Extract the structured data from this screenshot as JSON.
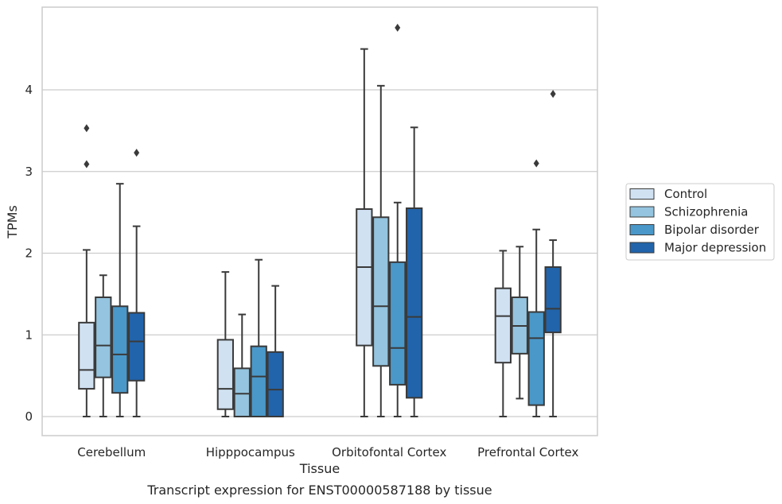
{
  "caption": "Transcript expression for ENST00000587188 by tissue",
  "chart_data": {
    "type": "box",
    "xlabel": "Tissue",
    "ylabel": "TPMs",
    "ylim": [
      -0.23,
      4.97
    ],
    "yticks": [
      0,
      1,
      2,
      3,
      4
    ],
    "grid": "horizontal",
    "legend_position": "right",
    "categories": [
      "Cerebellum",
      "Hipppocampus",
      "Orbitofontal Cortex",
      "Prefrontal Cortex"
    ],
    "series": [
      {
        "name": "Control",
        "color": "#d0e1f2",
        "boxes": [
          {
            "min": 0,
            "q1": 0.34,
            "median": 0.57,
            "q3": 1.15,
            "max": 2.04,
            "outliers": [
              3.09,
              3.53
            ]
          },
          {
            "min": 0,
            "q1": 0.09,
            "median": 0.34,
            "q3": 0.94,
            "max": 1.77,
            "outliers": []
          },
          {
            "min": 0,
            "q1": 0.87,
            "median": 1.83,
            "q3": 2.54,
            "max": 4.5,
            "outliers": []
          },
          {
            "min": 0,
            "q1": 0.66,
            "median": 1.23,
            "q3": 1.57,
            "max": 2.03,
            "outliers": []
          }
        ]
      },
      {
        "name": "Schizophrenia",
        "color": "#94c4df",
        "boxes": [
          {
            "min": 0,
            "q1": 0.48,
            "median": 0.87,
            "q3": 1.46,
            "max": 1.73,
            "outliers": []
          },
          {
            "min": 0,
            "q1": 0,
            "median": 0.28,
            "q3": 0.59,
            "max": 1.25,
            "outliers": []
          },
          {
            "min": 0,
            "q1": 0.62,
            "median": 1.35,
            "q3": 2.44,
            "max": 4.05,
            "outliers": []
          },
          {
            "min": 0.22,
            "q1": 0.77,
            "median": 1.11,
            "q3": 1.46,
            "max": 2.08,
            "outliers": []
          }
        ]
      },
      {
        "name": "Bipolar disorder",
        "color": "#4a98c9",
        "boxes": [
          {
            "min": 0,
            "q1": 0.29,
            "median": 0.76,
            "q3": 1.35,
            "max": 2.85,
            "outliers": []
          },
          {
            "min": 0,
            "q1": 0,
            "median": 0.49,
            "q3": 0.86,
            "max": 1.92,
            "outliers": []
          },
          {
            "min": 0,
            "q1": 0.39,
            "median": 0.84,
            "q3": 1.89,
            "max": 2.62,
            "outliers": [
              4.76
            ]
          },
          {
            "min": 0,
            "q1": 0.14,
            "median": 0.96,
            "q3": 1.28,
            "max": 2.29,
            "outliers": [
              3.1
            ]
          }
        ]
      },
      {
        "name": "Major depression",
        "color": "#2164ab",
        "boxes": [
          {
            "min": 0,
            "q1": 0.44,
            "median": 0.92,
            "q3": 1.27,
            "max": 2.33,
            "outliers": [
              3.23
            ]
          },
          {
            "min": 0,
            "q1": 0,
            "median": 0.33,
            "q3": 0.79,
            "max": 1.6,
            "outliers": []
          },
          {
            "min": 0,
            "q1": 0.23,
            "median": 1.22,
            "q3": 2.55,
            "max": 3.54,
            "outliers": []
          },
          {
            "min": 0,
            "q1": 1.03,
            "median": 1.32,
            "q3": 1.83,
            "max": 2.16,
            "outliers": [
              3.95
            ]
          }
        ]
      }
    ]
  }
}
